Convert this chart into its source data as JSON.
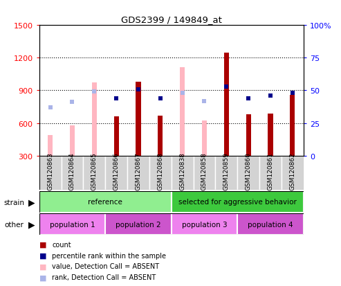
{
  "title": "GDS2399 / 149849_at",
  "samples": [
    "GSM120863",
    "GSM120864",
    "GSM120865",
    "GSM120866",
    "GSM120867",
    "GSM120868",
    "GSM120838",
    "GSM120858",
    "GSM120859",
    "GSM120860",
    "GSM120861",
    "GSM120862"
  ],
  "count": [
    null,
    null,
    null,
    660,
    980,
    670,
    null,
    null,
    1250,
    680,
    685,
    860
  ],
  "value_absent": [
    490,
    575,
    975,
    null,
    null,
    null,
    1110,
    625,
    null,
    null,
    null,
    null
  ],
  "percentile": [
    null,
    null,
    null,
    44,
    51,
    44,
    null,
    null,
    53,
    44,
    46,
    48
  ],
  "percentile_absent": [
    37,
    41,
    49,
    null,
    null,
    null,
    48,
    42,
    null,
    null,
    null,
    null
  ],
  "ylim_left": [
    300,
    1500
  ],
  "ylim_right": [
    0,
    100
  ],
  "yticks_left": [
    300,
    600,
    900,
    1200,
    1500
  ],
  "yticks_right": [
    0,
    25,
    50,
    75,
    100
  ],
  "ytick_right_labels": [
    "0",
    "25",
    "50",
    "75",
    "100%"
  ],
  "gridlines": [
    600,
    900,
    1200
  ],
  "strain_groups": [
    {
      "label": "reference",
      "start": 0,
      "end": 6,
      "color": "#90ee90"
    },
    {
      "label": "selected for aggressive behavior",
      "start": 6,
      "end": 12,
      "color": "#3dc93d"
    }
  ],
  "other_groups": [
    {
      "label": "population 1",
      "start": 0,
      "end": 3,
      "color": "#ee82ee"
    },
    {
      "label": "population 2",
      "start": 3,
      "end": 6,
      "color": "#cc55cc"
    },
    {
      "label": "population 3",
      "start": 6,
      "end": 9,
      "color": "#ee82ee"
    },
    {
      "label": "population 4",
      "start": 9,
      "end": 12,
      "color": "#cc55cc"
    }
  ],
  "count_color": "#aa0000",
  "absent_value_color": "#ffb6c1",
  "percentile_color": "#00008b",
  "absent_rank_color": "#aab4e8",
  "bar_width": 0.35,
  "marker_size": 5,
  "legend_items": [
    {
      "color": "#aa0000",
      "label": "count"
    },
    {
      "color": "#00008b",
      "label": "percentile rank within the sample"
    },
    {
      "color": "#ffb6c1",
      "label": "value, Detection Call = ABSENT"
    },
    {
      "color": "#aab4e8",
      "label": "rank, Detection Call = ABSENT"
    }
  ]
}
